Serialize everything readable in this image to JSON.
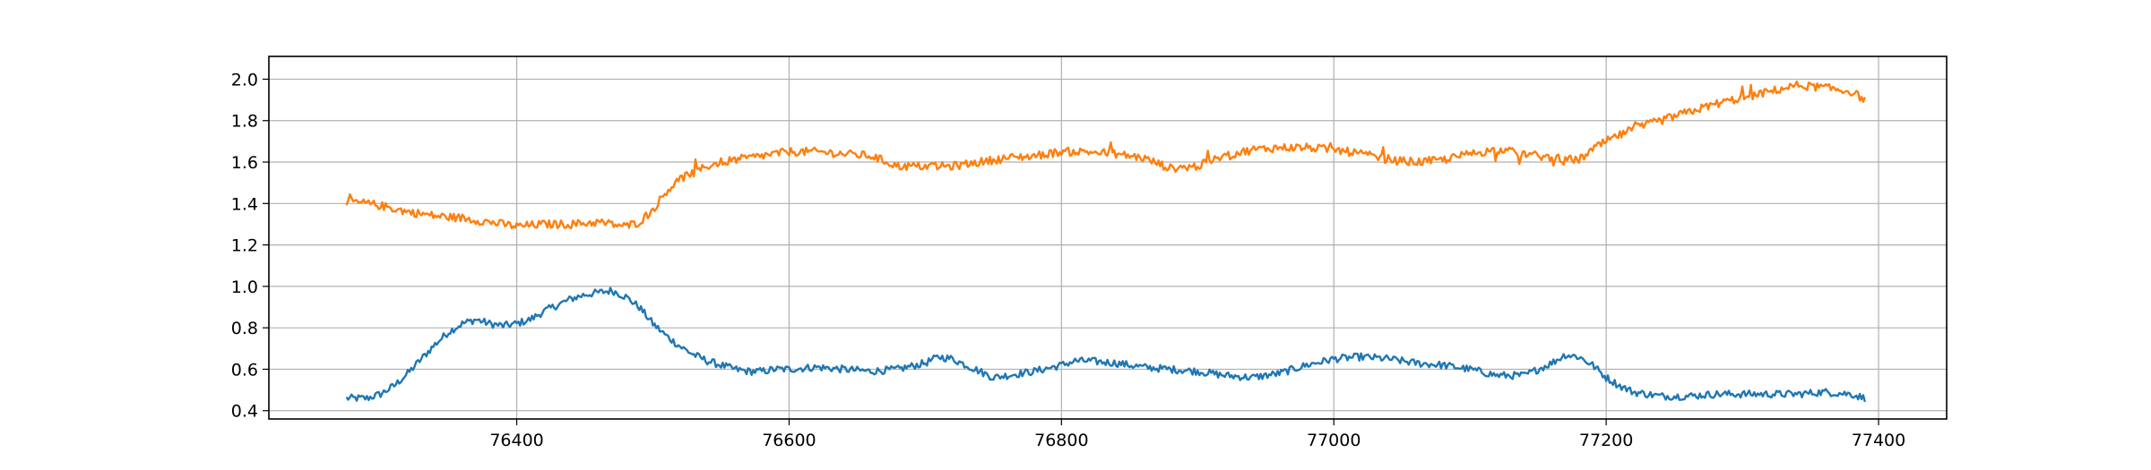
{
  "chart_data": {
    "type": "line",
    "title": "",
    "xlabel": "",
    "ylabel": "",
    "xlim": [
      76218,
      77450
    ],
    "ylim": [
      0.36,
      2.11
    ],
    "grid": true,
    "legend": "none",
    "x_ticks": [
      {
        "value": 76400,
        "label": "76400"
      },
      {
        "value": 76600,
        "label": "76600"
      },
      {
        "value": 76800,
        "label": "76800"
      },
      {
        "value": 77000,
        "label": "77000"
      },
      {
        "value": 77200,
        "label": "77200"
      },
      {
        "value": 77400,
        "label": "77400"
      }
    ],
    "y_ticks": [
      {
        "value": 0.4,
        "label": "0.4"
      },
      {
        "value": 0.6,
        "label": "0.6"
      },
      {
        "value": 0.8,
        "label": "0.8"
      },
      {
        "value": 1.0,
        "label": "1.0"
      },
      {
        "value": 1.2,
        "label": "1.2"
      },
      {
        "value": 1.4,
        "label": "1.4"
      },
      {
        "value": 1.6,
        "label": "1.6"
      },
      {
        "value": 1.8,
        "label": "1.8"
      },
      {
        "value": 2.0,
        "label": "2.0"
      }
    ],
    "series": [
      {
        "color": "#1f77b4",
        "x": [
          76275,
          76290,
          76300,
          76310,
          76320,
          76330,
          76340,
          76350,
          76360,
          76370,
          76380,
          76390,
          76400,
          76410,
          76420,
          76430,
          76440,
          76450,
          76460,
          76470,
          76480,
          76490,
          76500,
          76510,
          76520,
          76530,
          76540,
          76550,
          76560,
          76570,
          76580,
          76590,
          76600,
          76620,
          76640,
          76660,
          76680,
          76700,
          76710,
          76720,
          76730,
          76740,
          76750,
          76760,
          76780,
          76800,
          76810,
          76820,
          76840,
          76860,
          76880,
          76900,
          76920,
          76940,
          76960,
          76980,
          77000,
          77020,
          77040,
          77060,
          77080,
          77100,
          77120,
          77140,
          77160,
          77170,
          77180,
          77190,
          77200,
          77210,
          77220,
          77240,
          77260,
          77280,
          77300,
          77320,
          77340,
          77360,
          77380,
          77390
        ],
        "values": [
          0.46,
          0.46,
          0.48,
          0.52,
          0.58,
          0.65,
          0.72,
          0.78,
          0.82,
          0.84,
          0.82,
          0.81,
          0.82,
          0.84,
          0.88,
          0.91,
          0.94,
          0.96,
          0.97,
          0.98,
          0.95,
          0.9,
          0.82,
          0.76,
          0.71,
          0.67,
          0.64,
          0.62,
          0.6,
          0.59,
          0.59,
          0.6,
          0.6,
          0.61,
          0.6,
          0.59,
          0.6,
          0.63,
          0.66,
          0.65,
          0.62,
          0.59,
          0.56,
          0.57,
          0.59,
          0.62,
          0.64,
          0.64,
          0.63,
          0.61,
          0.6,
          0.59,
          0.57,
          0.56,
          0.58,
          0.62,
          0.65,
          0.66,
          0.65,
          0.63,
          0.62,
          0.6,
          0.57,
          0.57,
          0.63,
          0.67,
          0.66,
          0.62,
          0.56,
          0.52,
          0.49,
          0.47,
          0.47,
          0.48,
          0.48,
          0.48,
          0.48,
          0.49,
          0.48,
          0.46
        ]
      },
      {
        "color": "#ff7f0e",
        "x": [
          76275,
          76290,
          76300,
          76320,
          76340,
          76360,
          76380,
          76400,
          76420,
          76440,
          76460,
          76470,
          76480,
          76490,
          76500,
          76510,
          76520,
          76530,
          76540,
          76550,
          76560,
          76580,
          76600,
          76620,
          76640,
          76660,
          76680,
          76700,
          76720,
          76740,
          76760,
          76780,
          76800,
          76820,
          76840,
          76860,
          76880,
          76900,
          76920,
          76940,
          76960,
          76980,
          77000,
          77020,
          77040,
          77060,
          77080,
          77100,
          77120,
          77140,
          77160,
          77180,
          77190,
          77200,
          77210,
          77220,
          77240,
          77260,
          77280,
          77300,
          77320,
          77340,
          77360,
          77380,
          77390
        ],
        "values": [
          1.41,
          1.4,
          1.39,
          1.36,
          1.34,
          1.33,
          1.31,
          1.29,
          1.3,
          1.3,
          1.31,
          1.3,
          1.29,
          1.31,
          1.37,
          1.46,
          1.52,
          1.55,
          1.58,
          1.6,
          1.61,
          1.63,
          1.65,
          1.65,
          1.64,
          1.63,
          1.58,
          1.58,
          1.58,
          1.6,
          1.62,
          1.63,
          1.65,
          1.65,
          1.64,
          1.62,
          1.57,
          1.58,
          1.63,
          1.66,
          1.67,
          1.67,
          1.66,
          1.64,
          1.61,
          1.6,
          1.61,
          1.64,
          1.66,
          1.64,
          1.62,
          1.61,
          1.66,
          1.7,
          1.73,
          1.76,
          1.8,
          1.84,
          1.88,
          1.91,
          1.94,
          1.97,
          1.96,
          1.94,
          1.9
        ]
      }
    ]
  }
}
